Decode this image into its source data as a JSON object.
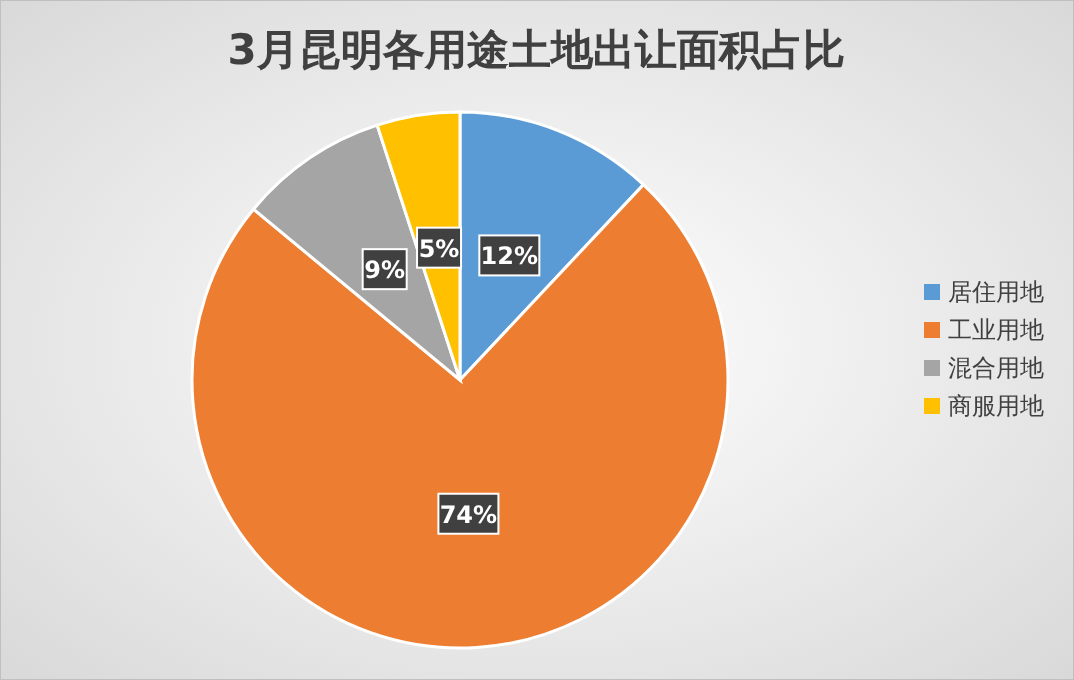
{
  "chart_data": {
    "type": "pie",
    "title": "3月昆明各用途土地出让面积占比",
    "categories": [
      "居住用地",
      "工业用地",
      "混合用地",
      "商服用地"
    ],
    "values": [
      12,
      74,
      9,
      5
    ],
    "colors": [
      "#5b9bd5",
      "#ed7d31",
      "#a5a5a5",
      "#ffc000"
    ],
    "value_labels": [
      "12%",
      "74%",
      "9%",
      "5%"
    ],
    "legend": "right"
  }
}
